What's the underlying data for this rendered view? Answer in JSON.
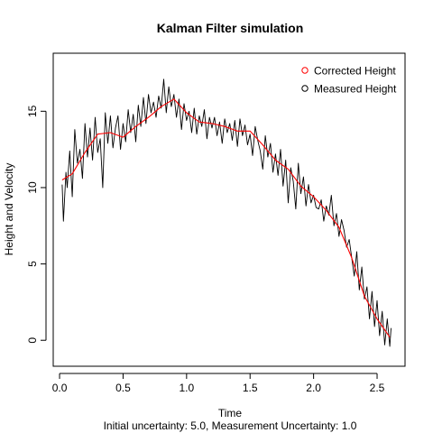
{
  "chart_data": {
    "type": "line",
    "title": "Kalman Filter simulation",
    "xlabel": "Time",
    "ylabel": "Height and Velocity",
    "subtitle": "Initial uncertainty: 5.0, Measurement Uncertainty: 1.0",
    "xlim": [
      -0.05,
      2.72
    ],
    "ylim": [
      -1.7,
      18.8
    ],
    "xticks": [
      0.0,
      0.5,
      1.0,
      1.5,
      2.0,
      2.5
    ],
    "xtick_labels": [
      "0.0",
      "0.5",
      "1.0",
      "1.5",
      "2.0",
      "2.5"
    ],
    "yticks": [
      0,
      5,
      10,
      15
    ],
    "ytick_labels": [
      "0",
      "5",
      "10",
      "15"
    ],
    "grid": false,
    "legend_position": "top-right",
    "series": [
      {
        "name": "Corrected Height",
        "color": "#ff0000",
        "x": [
          0.02,
          0.1,
          0.2,
          0.3,
          0.4,
          0.5,
          0.6,
          0.7,
          0.8,
          0.9,
          1.0,
          1.1,
          1.2,
          1.3,
          1.4,
          1.5,
          1.6,
          1.7,
          1.8,
          1.9,
          2.0,
          2.1,
          2.2,
          2.3,
          2.4,
          2.5,
          2.6
        ],
        "y": [
          10.5,
          10.9,
          12.3,
          13.5,
          13.6,
          13.3,
          14.0,
          14.6,
          15.3,
          15.8,
          14.9,
          14.3,
          14.2,
          14.0,
          13.7,
          13.7,
          12.8,
          11.8,
          11.2,
          10.1,
          9.4,
          8.5,
          7.4,
          5.4,
          2.9,
          1.4,
          0.2
        ]
      },
      {
        "name": "Measured Height",
        "color": "#000000",
        "x": [
          0.02,
          0.03,
          0.05,
          0.06,
          0.08,
          0.1,
          0.12,
          0.14,
          0.16,
          0.18,
          0.2,
          0.22,
          0.24,
          0.26,
          0.28,
          0.3,
          0.32,
          0.34,
          0.36,
          0.38,
          0.4,
          0.42,
          0.44,
          0.46,
          0.48,
          0.5,
          0.52,
          0.54,
          0.56,
          0.58,
          0.6,
          0.62,
          0.64,
          0.66,
          0.68,
          0.7,
          0.72,
          0.74,
          0.76,
          0.78,
          0.8,
          0.82,
          0.84,
          0.86,
          0.88,
          0.9,
          0.92,
          0.94,
          0.96,
          0.98,
          1.0,
          1.02,
          1.04,
          1.06,
          1.08,
          1.1,
          1.12,
          1.14,
          1.16,
          1.18,
          1.2,
          1.22,
          1.24,
          1.26,
          1.28,
          1.3,
          1.32,
          1.34,
          1.36,
          1.38,
          1.4,
          1.42,
          1.44,
          1.46,
          1.48,
          1.5,
          1.52,
          1.54,
          1.56,
          1.58,
          1.6,
          1.62,
          1.64,
          1.66,
          1.68,
          1.7,
          1.72,
          1.74,
          1.76,
          1.78,
          1.8,
          1.82,
          1.84,
          1.86,
          1.88,
          1.9,
          1.92,
          1.94,
          1.96,
          1.98,
          2.0,
          2.02,
          2.04,
          2.06,
          2.08,
          2.1,
          2.12,
          2.14,
          2.16,
          2.18,
          2.2,
          2.22,
          2.24,
          2.26,
          2.28,
          2.3,
          2.32,
          2.34,
          2.36,
          2.38,
          2.4,
          2.42,
          2.44,
          2.46,
          2.48,
          2.5,
          2.52,
          2.54,
          2.56,
          2.58,
          2.6,
          2.61
        ],
        "y": [
          10.2,
          7.8,
          11.0,
          10.0,
          12.4,
          9.4,
          13.8,
          11.6,
          12.5,
          10.6,
          14.2,
          12.0,
          13.9,
          11.8,
          14.6,
          12.3,
          13.2,
          10.0,
          14.9,
          12.9,
          14.7,
          12.6,
          13.9,
          14.7,
          12.5,
          14.2,
          13.0,
          15.1,
          13.6,
          14.8,
          13.0,
          15.4,
          14.0,
          15.9,
          14.2,
          16.1,
          14.9,
          15.6,
          14.6,
          16.0,
          15.2,
          17.1,
          14.9,
          16.6,
          15.3,
          16.1,
          14.6,
          15.8,
          13.8,
          15.5,
          14.4,
          15.0,
          13.6,
          15.2,
          13.5,
          14.7,
          14.0,
          15.1,
          13.2,
          14.6,
          13.9,
          14.6,
          13.4,
          14.3,
          12.9,
          14.5,
          13.6,
          14.2,
          13.1,
          14.4,
          12.7,
          14.5,
          13.4,
          14.1,
          12.8,
          13.5,
          12.1,
          14.0,
          13.1,
          12.4,
          11.2,
          13.4,
          12.0,
          12.9,
          11.0,
          12.2,
          10.8,
          12.5,
          10.1,
          11.8,
          9.0,
          11.3,
          10.4,
          8.6,
          11.6,
          9.6,
          10.7,
          8.8,
          10.2,
          9.0,
          9.5,
          8.7,
          8.6,
          9.2,
          7.8,
          8.8,
          8.2,
          9.5,
          7.5,
          8.3,
          6.8,
          7.9,
          7.2,
          6.1,
          6.6,
          5.4,
          4.2,
          5.8,
          3.3,
          4.8,
          2.7,
          3.5,
          1.4,
          3.2,
          0.9,
          2.6,
          0.3,
          1.9,
          -0.3,
          1.4,
          -0.4,
          0.8
        ]
      }
    ]
  }
}
